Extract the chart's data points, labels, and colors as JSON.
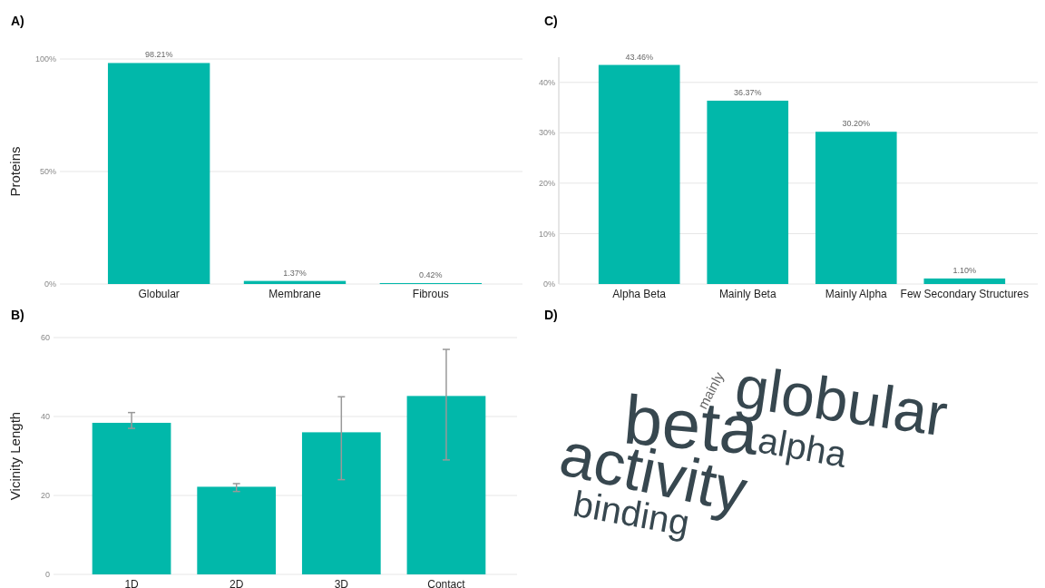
{
  "chart_data": [
    {
      "type": "bar",
      "title": "A)",
      "ylabel": "Proteins",
      "categories": [
        "Globular",
        "Membrane",
        "Fibrous"
      ],
      "values": [
        98.21,
        1.37,
        0.42
      ],
      "value_labels": [
        "98.21%",
        "1.37%",
        "0.42%"
      ],
      "color": "#01b8aa",
      "ylim": [
        0,
        100
      ],
      "yticks": [
        {
          "value": 0,
          "label": "0%"
        },
        {
          "value": 50,
          "label": "50%"
        },
        {
          "value": 100,
          "label": "100%"
        }
      ],
      "grid": "y"
    },
    {
      "type": "bar",
      "title": "C)",
      "categories": [
        "Alpha Beta",
        "Mainly Beta",
        "Mainly Alpha",
        "Few Secondary Structures"
      ],
      "values": [
        43.46,
        36.37,
        30.2,
        1.1
      ],
      "value_labels": [
        "43.46%",
        "36.37%",
        "30.20%",
        "1.10%"
      ],
      "color": "#01b8aa",
      "ylim": [
        0,
        45
      ],
      "yticks": [
        {
          "value": 0,
          "label": "0%"
        },
        {
          "value": 10,
          "label": "10%"
        },
        {
          "value": 20,
          "label": "20%"
        },
        {
          "value": 30,
          "label": "30%"
        },
        {
          "value": 40,
          "label": "40%"
        }
      ],
      "grid": "y"
    },
    {
      "type": "bar",
      "title": "B)",
      "ylabel": "Vicinity Length",
      "categories": [
        "1D",
        "2D",
        "3D",
        "Contact"
      ],
      "values": [
        38.4,
        22.2,
        36,
        45.2
      ],
      "errors": [
        [
          37,
          41
        ],
        [
          21,
          23
        ],
        [
          24,
          45
        ],
        [
          29,
          57
        ]
      ],
      "color": "#01b8aa",
      "ylim": [
        0,
        60
      ],
      "yticks": [
        0,
        20,
        40,
        60
      ],
      "grid": "y"
    },
    {
      "type": "other",
      "title": "D)",
      "annotations": [
        "globular",
        "beta",
        "alpha",
        "activity",
        "binding",
        "mainly"
      ]
    }
  ]
}
